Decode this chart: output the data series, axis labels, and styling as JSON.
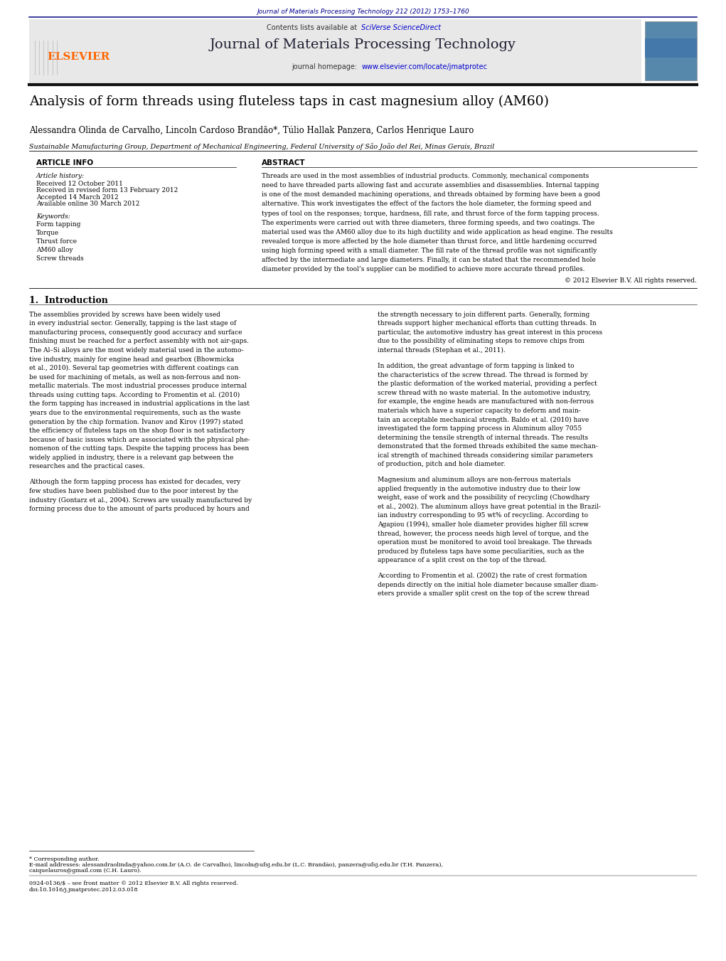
{
  "page_width": 10.21,
  "page_height": 13.51,
  "bg_color": "#ffffff",
  "top_journal_ref": "Journal of Materials Processing Technology 212 (2012) 1753–1760",
  "top_journal_ref_color": "#00008B",
  "header_bg": "#E8E8E8",
  "header_journal_title": "Journal of Materials Processing Technology",
  "header_contents_text": "Contents lists available at ",
  "header_sciverse": "SciVerse ScienceDirect",
  "header_homepage_text": "journal homepage: ",
  "header_homepage_url": "www.elsevier.com/locate/jmatprotec",
  "elsevier_color": "#FF6600",
  "paper_title": "Analysis of form threads using fluteless taps in cast magnesium alloy (AM60)",
  "authors": "Alessandra Olinda de Carvalho, Lincoln Cardoso Brandão*, Túlio Hallak Panzera, Carlos Henrique Lauro",
  "affiliation": "Sustainable Manufacturing Group, Department of Mechanical Engineering, Federal University of São João del Rei, Minas Gerais, Brazil",
  "article_info_header": "ARTICLE INFO",
  "abstract_header": "ABSTRACT",
  "article_history_label": "Article history:",
  "received_1": "Received 12 October 2011",
  "received_2": "Received in revised form 13 February 2012",
  "accepted": "Accepted 14 March 2012",
  "available": "Available online 30 March 2012",
  "keywords_label": "Keywords:",
  "keyword_1": "Form tapping",
  "keyword_2": "Torque",
  "keyword_3": "Thrust force",
  "keyword_4": "AM60 alloy",
  "keyword_5": "Screw threads",
  "abstract_lines": [
    "Threads are used in the most assemblies of industrial products. Commonly, mechanical components",
    "need to have threaded parts allowing fast and accurate assemblies and disassemblies. Internal tapping",
    "is one of the most demanded machining operations, and threads obtained by forming have been a good",
    "alternative. This work investigates the effect of the factors the hole diameter, the forming speed and",
    "types of tool on the responses; torque, hardness, fill rate, and thrust force of the form tapping process.",
    "The experiments were carried out with three diameters, three forming speeds, and two coatings. The",
    "material used was the AM60 alloy due to its high ductility and wide application as head engine. The results",
    "revealed torque is more affected by the hole diameter than thrust force, and little hardening occurred",
    "using high forming speed with a small diameter. The fill rate of the thread profile was not significantly",
    "affected by the intermediate and large diameters. Finally, it can be stated that the recommended hole",
    "diameter provided by the tool’s supplier can be modified to achieve more accurate thread profiles."
  ],
  "copyright_text": "© 2012 Elsevier B.V. All rights reserved.",
  "section_1_header": "1.  Introduction",
  "col1_para1": [
    "The assemblies provided by screws have been widely used",
    "in every industrial sector. Generally, tapping is the last stage of",
    "manufacturing process, consequently good accuracy and surface",
    "finishing must be reached for a perfect assembly with not air-gaps.",
    "The Al–Si alloys are the most widely material used in the automo-",
    "tive industry, mainly for engine head and gearbox (Bhowmicka",
    "et al., 2010). Several tap geometries with different coatings can",
    "be used for machining of metals, as well as non-ferrous and non-",
    "metallic materials. The most industrial processes produce internal",
    "threads using cutting taps. According to Fromentin et al. (2010)",
    "the form tapping has increased in industrial applications in the last",
    "years due to the environmental requirements, such as the waste",
    "generation by the chip formation. Ivanov and Kirov (1997) stated",
    "the efficiency of fluteless taps on the shop floor is not satisfactory",
    "because of basic issues which are associated with the physical phe-",
    "nomenon of the cutting taps. Despite the tapping process has been",
    "widely applied in industry, there is a relevant gap between the",
    "researches and the practical cases."
  ],
  "col1_para2": [
    "Although the form tapping process has existed for decades, very",
    "few studies have been published due to the poor interest by the",
    "industry (Gontarz et al., 2004). Screws are usually manufactured by",
    "forming process due to the amount of parts produced by hours and"
  ],
  "col2_para1": [
    "the strength necessary to join different parts. Generally, forming",
    "threads support higher mechanical efforts than cutting threads. In",
    "particular, the automotive industry has great interest in this process",
    "due to the possibility of eliminating steps to remove chips from",
    "internal threads (Stephan et al., 2011)."
  ],
  "col2_para2": [
    "In addition, the great advantage of form tapping is linked to",
    "the characteristics of the screw thread. The thread is formed by",
    "the plastic deformation of the worked material, providing a perfect",
    "screw thread with no waste material. In the automotive industry,",
    "for example, the engine heads are manufactured with non-ferrous",
    "materials which have a superior capacity to deform and main-",
    "tain an acceptable mechanical strength. Baldo et al. (2010) have",
    "investigated the form tapping process in Aluminum alloy 7055",
    "determining the tensile strength of internal threads. The results",
    "demonstrated that the formed threads exhibited the same mechan-",
    "ical strength of machined threads considering similar parameters",
    "of production, pitch and hole diameter."
  ],
  "col2_para3": [
    "Magnesium and aluminum alloys are non-ferrous materials",
    "applied frequently in the automotive industry due to their low",
    "weight, ease of work and the possibility of recycling (Chowdhary",
    "et al., 2002). The aluminum alloys have great potential in the Brazil-",
    "ian industry corresponding to 95 wt% of recycling. According to",
    "Agapiou (1994), smaller hole diameter provides higher fill screw",
    "thread, however, the process needs high level of torque, and the",
    "operation must be monitored to avoid tool breakage. The threads",
    "produced by fluteless taps have some peculiarities, such as the",
    "appearance of a split crest on the top of the thread."
  ],
  "col2_para4": [
    "According to Fromentin et al. (2002) the rate of crest formation",
    "depends directly on the initial hole diameter because smaller diam-",
    "eters provide a smaller split crest on the top of the screw thread"
  ],
  "footnote_star": "* Corresponding author.",
  "footnote_emails": "E-mail addresses: alessandraolinda@yahoo.com.br (A.O. de Carvalho), lincoln@ufsj.edu.br (L.C. Brandão), panzera@ufsj.edu.br (T.H. Panzera),",
  "footnote_emails2": "caiquelauros@gmail.com (C.H. Lauro).",
  "footnote_rights": "0924-0136/$ – see front matter © 2012 Elsevier B.V. All rights reserved.",
  "footnote_doi": "doi:10.1016/j.jmatprotec.2012.03.018",
  "divider_color": "#000000",
  "header_divider_color": "#1a1a8c",
  "link_color": "#0000CD"
}
